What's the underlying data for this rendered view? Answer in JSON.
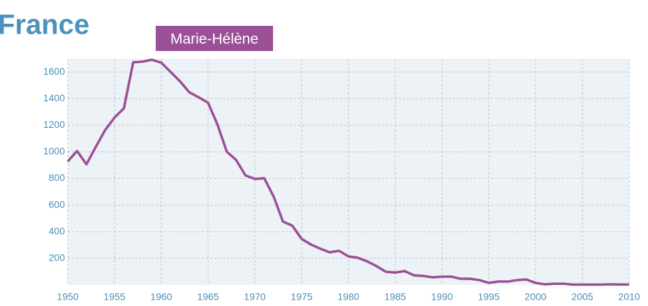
{
  "chart_data": {
    "type": "line",
    "title": "France",
    "x": [
      1950,
      1951,
      1952,
      1953,
      1954,
      1955,
      1956,
      1957,
      1958,
      1959,
      1960,
      1961,
      1962,
      1963,
      1964,
      1965,
      1966,
      1967,
      1968,
      1969,
      1970,
      1971,
      1972,
      1973,
      1974,
      1975,
      1976,
      1977,
      1978,
      1979,
      1980,
      1981,
      1982,
      1983,
      1984,
      1985,
      1986,
      1987,
      1988,
      1989,
      1990,
      1991,
      1992,
      1993,
      1994,
      1995,
      1996,
      1997,
      1998,
      1999,
      2000,
      2001,
      2002,
      2003,
      2004,
      2005,
      2006,
      2007,
      2008,
      2009,
      2010
    ],
    "series": [
      {
        "name": "Marie-Hélène",
        "color": "#9b4f96",
        "values": [
          928,
          1007,
          907,
          1038,
          1164,
          1258,
          1327,
          1673,
          1678,
          1692,
          1670,
          1600,
          1530,
          1447,
          1410,
          1369,
          1206,
          1002,
          939,
          823,
          797,
          802,
          666,
          477,
          446,
          346,
          304,
          273,
          246,
          257,
          215,
          205,
          178,
          142,
          100,
          94,
          105,
          73,
          68,
          58,
          63,
          63,
          47,
          47,
          37,
          16,
          26,
          26,
          37,
          42,
          16,
          5,
          10,
          10,
          3,
          3,
          3,
          3,
          5,
          4,
          4
        ]
      }
    ],
    "xlim": [
      1950,
      2010
    ],
    "xticks": [
      1950,
      1955,
      1960,
      1965,
      1970,
      1975,
      1980,
      1985,
      1990,
      1995,
      2000,
      2005,
      2010
    ],
    "ylim": [
      0,
      1700
    ],
    "yticks": [
      200,
      400,
      600,
      800,
      1000,
      1200,
      1400,
      1600
    ],
    "grid": true
  }
}
